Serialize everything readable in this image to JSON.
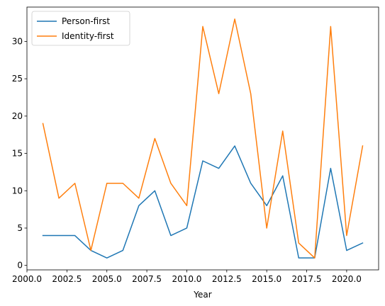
{
  "chart_data": {
    "type": "line",
    "title": "",
    "xlabel": "Year",
    "ylabel": "",
    "xlim": [
      2000.0,
      2022.0
    ],
    "ylim": [
      -0.6,
      34.6
    ],
    "xticks": [
      2000.0,
      2002.5,
      2005.0,
      2007.5,
      2010.0,
      2012.5,
      2015.0,
      2017.5,
      2020.0
    ],
    "xtick_labels": [
      "2000.0",
      "2002.5",
      "2005.0",
      "2007.5",
      "2010.0",
      "2012.5",
      "2015.0",
      "2017.5",
      "2020.0"
    ],
    "yticks": [
      0,
      5,
      10,
      15,
      20,
      25,
      30
    ],
    "ytick_labels": [
      "0",
      "5",
      "10",
      "15",
      "20",
      "25",
      "30"
    ],
    "grid": false,
    "legend_position": "top-left",
    "x": [
      2001,
      2002,
      2003,
      2004,
      2005,
      2006,
      2007,
      2008,
      2009,
      2010,
      2011,
      2012,
      2013,
      2014,
      2015,
      2016,
      2017,
      2018,
      2019,
      2020,
      2021
    ],
    "series": [
      {
        "name": "Person-first",
        "color": "#1f77b4",
        "values": [
          4,
          4,
          4,
          2,
          1,
          2,
          8,
          10,
          4,
          5,
          14,
          13,
          16,
          11,
          8,
          12,
          1,
          1,
          13,
          2,
          3
        ]
      },
      {
        "name": "Identity-first",
        "color": "#ff7f0e",
        "values": [
          19,
          9,
          11,
          2,
          11,
          11,
          9,
          17,
          11,
          8,
          32,
          23,
          33,
          23,
          5,
          18,
          3,
          1,
          32,
          4,
          16
        ]
      }
    ]
  }
}
